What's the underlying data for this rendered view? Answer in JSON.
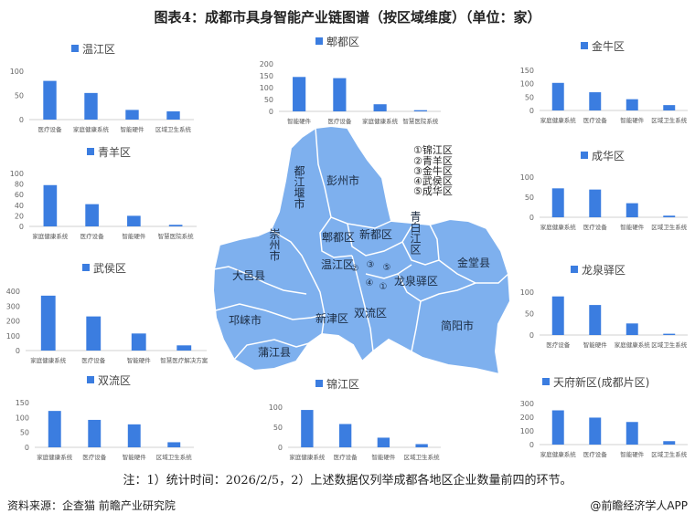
{
  "title": "图表4：成都市具身智能产业链图谱（按区域维度）（单位：家）",
  "colors": {
    "bar": "#3b7de0",
    "map_fill": "#7eb0ee",
    "map_border": "#ffffff"
  },
  "map": {
    "legend": [
      "①锦江区",
      "②青羊区",
      "③金牛区",
      "④武侯区",
      "⑤成华区"
    ],
    "labels": {
      "dujiangyan": "都江堰市",
      "pengzhou": "彭州市",
      "pidu": "郫都区",
      "xindu": "新都区",
      "qingbaijiang": "青白江区",
      "jintang": "金堂县",
      "chongzhou": "崇州市",
      "dayi": "大邑县",
      "wenjiang": "温江区",
      "longquanyi": "龙泉驿区",
      "shuangliu": "双流区",
      "xinjin": "新津区",
      "qionglai": "邛崃市",
      "pujiang": "蒲江县",
      "jianyang": "简阳市",
      "m1": "①",
      "m2": "②",
      "m3": "③",
      "m4": "④",
      "m5": "⑤"
    }
  },
  "chart_data": [
    {
      "type": "bar",
      "title": "温江区",
      "categories": [
        "医疗设备",
        "家庭健康系统",
        "智能硬件",
        "区域卫生系统"
      ],
      "values": [
        80,
        55,
        20,
        17
      ],
      "ylim": [
        0,
        100
      ],
      "yticks": [
        0,
        50,
        100
      ]
    },
    {
      "type": "bar",
      "title": "郫都区",
      "categories": [
        "智能硬件",
        "医疗设备",
        "家庭健康系统",
        "智慧医院系统"
      ],
      "values": [
        145,
        140,
        30,
        5
      ],
      "ylim": [
        0,
        200
      ],
      "yticks": [
        0,
        50,
        100,
        150,
        200
      ]
    },
    {
      "type": "bar",
      "title": "金牛区",
      "categories": [
        "家庭健康系统",
        "医疗设备",
        "智能硬件",
        "区域卫生系统"
      ],
      "values": [
        103,
        68,
        42,
        20
      ],
      "ylim": [
        0,
        150
      ],
      "yticks": [
        0,
        50,
        100,
        150
      ]
    },
    {
      "type": "bar",
      "title": "青羊区",
      "categories": [
        "家庭健康系统",
        "医疗设备",
        "智能硬件",
        "智慧医院系统"
      ],
      "values": [
        78,
        42,
        20,
        3
      ],
      "ylim": [
        0,
        100
      ],
      "yticks": [
        0,
        20,
        40,
        60,
        80,
        100
      ]
    },
    {
      "type": "bar",
      "title": "成华区",
      "categories": [
        "家庭健康系统",
        "医疗设备",
        "智能硬件",
        "区域卫生系统"
      ],
      "values": [
        72,
        69,
        35,
        4
      ],
      "ylim": [
        0,
        100
      ],
      "yticks": [
        0,
        50,
        100
      ]
    },
    {
      "type": "bar",
      "title": "武侯区",
      "categories": [
        "家庭健康系统",
        "医疗设备",
        "智能硬件",
        "智慧医疗解决方案"
      ],
      "values": [
        370,
        230,
        115,
        35
      ],
      "ylim": [
        0,
        400
      ],
      "yticks": [
        0,
        100,
        200,
        300,
        400
      ]
    },
    {
      "type": "bar",
      "title": "龙泉驿区",
      "categories": [
        "医疗设备",
        "智能硬件",
        "家庭健康系统",
        "区域卫生系统"
      ],
      "values": [
        90,
        70,
        27,
        3
      ],
      "ylim": [
        0,
        100
      ],
      "yticks": [
        0,
        50,
        100
      ]
    },
    {
      "type": "bar",
      "title": "双流区",
      "categories": [
        "家庭健康系统",
        "医疗设备",
        "智能硬件",
        "区域卫生系统"
      ],
      "values": [
        122,
        92,
        77,
        17
      ],
      "ylim": [
        0,
        150
      ],
      "yticks": [
        0,
        50,
        100,
        150
      ]
    },
    {
      "type": "bar",
      "title": "锦江区",
      "categories": [
        "家庭健康系统",
        "医疗设备",
        "智能硬件",
        "区域卫生系统"
      ],
      "values": [
        93,
        58,
        24,
        8
      ],
      "ylim": [
        0,
        100
      ],
      "yticks": [
        0,
        50,
        100
      ]
    },
    {
      "type": "bar",
      "title": "天府新区(成都片区)",
      "categories": [
        "家庭健康系统",
        "医疗设备",
        "智能硬件",
        "区域卫生系统"
      ],
      "values": [
        250,
        197,
        165,
        25
      ],
      "ylim": [
        0,
        300
      ],
      "yticks": [
        0,
        100,
        200,
        300
      ]
    }
  ],
  "footer": {
    "note": "注：1）统计时间：2026/2/5，2）上述数据仅列举成都各地区企业数量前四的环节。",
    "source": "资料来源：企查猫  前瞻产业研究院",
    "brand": "@前瞻经济学人APP"
  }
}
